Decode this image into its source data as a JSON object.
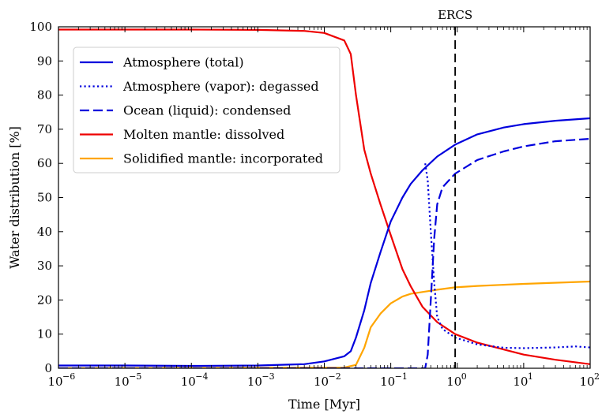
{
  "chart_data": {
    "type": "line",
    "title": "",
    "xlabel": "Time [Myr]",
    "ylabel": "Water distribution [%]",
    "xscale": "log",
    "xlim": [
      1e-06,
      100
    ],
    "ylim": [
      0,
      100
    ],
    "x_tick_labels": [
      "10",
      "10",
      "10",
      "10",
      "10",
      "10",
      "10",
      "10",
      "10"
    ],
    "x_tick_exponents": [
      "−6",
      "−5",
      "−4",
      "−3",
      "−2",
      "−1",
      "0",
      "1",
      "2"
    ],
    "y_ticks": [
      "0",
      "10",
      "20",
      "30",
      "40",
      "50",
      "60",
      "70",
      "80",
      "90",
      "100"
    ],
    "grid": false,
    "legend_position": "upper-left",
    "annotation": {
      "label": "ERCS",
      "x": 0.93
    },
    "series": [
      {
        "name": "Atmosphere (total)",
        "color": "#0000dd",
        "dash": "solid",
        "points": [
          [
            1e-06,
            0.8
          ],
          [
            1e-05,
            0.8
          ],
          [
            0.0001,
            0.7
          ],
          [
            0.001,
            0.8
          ],
          [
            0.005,
            1.2
          ],
          [
            0.01,
            2
          ],
          [
            0.02,
            3.5
          ],
          [
            0.025,
            5
          ],
          [
            0.03,
            9
          ],
          [
            0.04,
            17
          ],
          [
            0.05,
            25
          ],
          [
            0.07,
            34
          ],
          [
            0.1,
            43
          ],
          [
            0.15,
            50
          ],
          [
            0.2,
            54
          ],
          [
            0.3,
            58
          ],
          [
            0.5,
            62
          ],
          [
            0.93,
            65.5
          ],
          [
            2,
            68.5
          ],
          [
            5,
            70.5
          ],
          [
            10,
            71.5
          ],
          [
            30,
            72.5
          ],
          [
            100,
            73.2
          ]
        ]
      },
      {
        "name": "Atmosphere (vapor): degassed",
        "color": "#0000dd",
        "dash": "dotted",
        "points": [
          [
            0.33,
            60
          ],
          [
            0.36,
            55
          ],
          [
            0.4,
            40
          ],
          [
            0.45,
            25
          ],
          [
            0.5,
            15
          ],
          [
            0.6,
            11.5
          ],
          [
            0.93,
            9
          ],
          [
            2,
            7
          ],
          [
            5,
            6
          ],
          [
            10,
            5.9
          ],
          [
            30,
            6.1
          ],
          [
            60,
            6.4
          ],
          [
            100,
            6.1
          ]
        ]
      },
      {
        "name": "Ocean (liquid): condensed",
        "color": "#0000dd",
        "dash": "dashed",
        "points": [
          [
            1e-06,
            0
          ],
          [
            0.33,
            0
          ],
          [
            0.36,
            4
          ],
          [
            0.4,
            20
          ],
          [
            0.45,
            38
          ],
          [
            0.5,
            48
          ],
          [
            0.6,
            53
          ],
          [
            0.93,
            57
          ],
          [
            2,
            61
          ],
          [
            5,
            63.5
          ],
          [
            10,
            65
          ],
          [
            30,
            66.5
          ],
          [
            100,
            67.2
          ]
        ]
      },
      {
        "name": "Molten mantle: dissolved",
        "color": "#ee0000",
        "dash": "solid",
        "points": [
          [
            1e-06,
            99.2
          ],
          [
            0.0001,
            99.2
          ],
          [
            0.001,
            99.1
          ],
          [
            0.005,
            98.8
          ],
          [
            0.01,
            98.2
          ],
          [
            0.02,
            96
          ],
          [
            0.025,
            92
          ],
          [
            0.03,
            80
          ],
          [
            0.04,
            64
          ],
          [
            0.05,
            57
          ],
          [
            0.07,
            48
          ],
          [
            0.1,
            39
          ],
          [
            0.15,
            29
          ],
          [
            0.2,
            24
          ],
          [
            0.3,
            18
          ],
          [
            0.5,
            13.5
          ],
          [
            0.93,
            10
          ],
          [
            2,
            7.5
          ],
          [
            5,
            5.5
          ],
          [
            10,
            4
          ],
          [
            30,
            2.5
          ],
          [
            100,
            1.2
          ]
        ]
      },
      {
        "name": "Solidified mantle: incorporated",
        "color": "#ffa500",
        "dash": "solid",
        "points": [
          [
            1e-06,
            0
          ],
          [
            0.02,
            0.2
          ],
          [
            0.03,
            1
          ],
          [
            0.04,
            6
          ],
          [
            0.05,
            12
          ],
          [
            0.07,
            16
          ],
          [
            0.1,
            19
          ],
          [
            0.15,
            21
          ],
          [
            0.2,
            21.8
          ],
          [
            0.5,
            23
          ],
          [
            0.93,
            23.7
          ],
          [
            2,
            24.1
          ],
          [
            10,
            24.7
          ],
          [
            100,
            25.4
          ]
        ]
      }
    ]
  }
}
